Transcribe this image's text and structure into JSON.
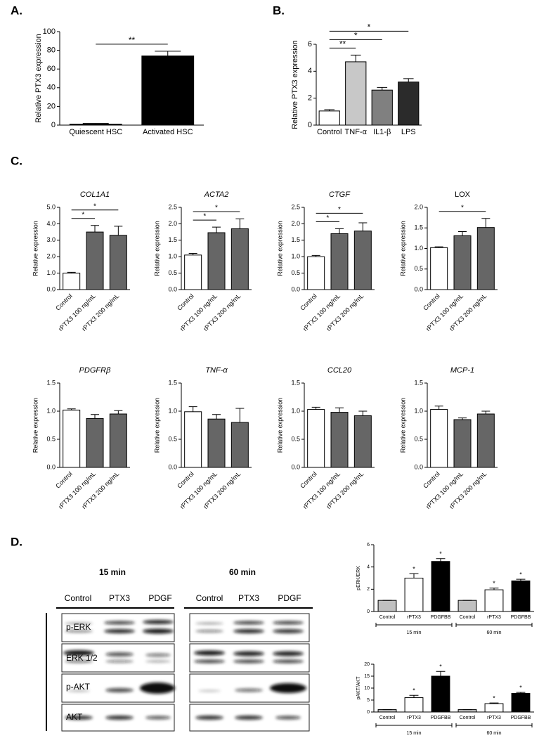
{
  "panels": [
    "A.",
    "B.",
    "C.",
    "D."
  ],
  "chart_data": [
    {
      "type": "bar",
      "ylabel": "Relative PTX3 expression",
      "categories": [
        "Quiescent HSC",
        "Activated HSC"
      ],
      "values": [
        1,
        74
      ],
      "error": [
        0.8,
        5
      ],
      "colors": [
        "#000000",
        "#000000"
      ],
      "ylim": [
        0,
        100
      ],
      "yticks": [
        0,
        20,
        40,
        60,
        80,
        100
      ],
      "annotations": [
        {
          "text": "**",
          "between": [
            "Quiescent HSC",
            "Activated HSC"
          ]
        }
      ]
    },
    {
      "type": "bar",
      "ylabel": "Relative PTX3 expression",
      "categories": [
        "Control",
        "TNF-α",
        "IL1-β",
        "LPS"
      ],
      "values": [
        1.05,
        4.7,
        2.6,
        3.2
      ],
      "error": [
        0.1,
        0.5,
        0.2,
        0.25
      ],
      "colors": [
        "#ffffff",
        "#c8c8c8",
        "#808080",
        "#2b2b2b"
      ],
      "ylim": [
        0,
        6
      ],
      "yticks": [
        0,
        2,
        4,
        6
      ],
      "annotations": [
        {
          "text": "**",
          "between": [
            "Control",
            "TNF-α"
          ]
        },
        {
          "text": "*",
          "between": [
            "Control",
            "IL1-β"
          ]
        },
        {
          "text": "*",
          "between": [
            "Control",
            "LPS"
          ]
        }
      ]
    },
    {
      "type": "bar",
      "title": "COL1A1",
      "italic": true,
      "ylabel": "Relative expression",
      "categories": [
        "Control",
        "rPTX3 100 ng/mL",
        "rPTX3 200 ng/mL"
      ],
      "values": [
        1.0,
        3.5,
        3.3
      ],
      "error": [
        0.05,
        0.4,
        0.55
      ],
      "colors": [
        "#ffffff",
        "#666666",
        "#666666"
      ],
      "ylim": [
        0,
        5
      ],
      "yticks": [
        {
          "value": 0,
          "label": "0.0"
        },
        {
          "value": 1,
          "label": "1.0"
        },
        {
          "value": 2,
          "label": "2.0"
        },
        {
          "value": 3,
          "label": "3.0"
        },
        {
          "value": 4,
          "label": "4.0"
        },
        {
          "value": 5,
          "label": "5.0"
        }
      ],
      "annotations": [
        {
          "text": "*",
          "between": [
            "Control",
            "rPTX3 100 ng/mL"
          ]
        },
        {
          "text": "*",
          "between": [
            "Control",
            "rPTX3 200 ng/mL"
          ]
        }
      ]
    },
    {
      "type": "bar",
      "title": "ACTA2",
      "italic": true,
      "ylabel": "Relative expression",
      "categories": [
        "Control",
        "rPTX3 100 ng/mL",
        "rPTX3 200 ng/mL"
      ],
      "values": [
        1.05,
        1.73,
        1.85
      ],
      "error": [
        0.05,
        0.17,
        0.3
      ],
      "colors": [
        "#ffffff",
        "#666666",
        "#666666"
      ],
      "ylim": [
        0,
        2.5
      ],
      "yticks": [
        {
          "value": 0,
          "label": "0.0"
        },
        {
          "value": 0.5,
          "label": "0.5"
        },
        {
          "value": 1,
          "label": "1.0"
        },
        {
          "value": 1.5,
          "label": "1.5"
        },
        {
          "value": 2,
          "label": "2.0"
        },
        {
          "value": 2.5,
          "label": "2.5"
        }
      ],
      "annotations": [
        {
          "text": "*",
          "between": [
            "Control",
            "rPTX3 100 ng/mL"
          ]
        },
        {
          "text": "*",
          "between": [
            "Control",
            "rPTX3 200 ng/mL"
          ]
        }
      ]
    },
    {
      "type": "bar",
      "title": "CTGF",
      "italic": true,
      "ylabel": "Relative expression",
      "categories": [
        "Control",
        "rPTX3 100 ng/mL",
        "rPTX3 200 ng/mL"
      ],
      "values": [
        1.0,
        1.7,
        1.78
      ],
      "error": [
        0.04,
        0.15,
        0.25
      ],
      "colors": [
        "#ffffff",
        "#666666",
        "#666666"
      ],
      "ylim": [
        0,
        2.5
      ],
      "yticks": [
        {
          "value": 0,
          "label": "0.0"
        },
        {
          "value": 0.5,
          "label": "0.5"
        },
        {
          "value": 1,
          "label": "1.0"
        },
        {
          "value": 1.5,
          "label": "1.5"
        },
        {
          "value": 2,
          "label": "2.0"
        },
        {
          "value": 2.5,
          "label": "2.5"
        }
      ],
      "annotations": [
        {
          "text": "*",
          "between": [
            "Control",
            "rPTX3 100 ng/mL"
          ]
        },
        {
          "text": "*",
          "between": [
            "Control",
            "rPTX3 200 ng/mL"
          ]
        }
      ]
    },
    {
      "type": "bar",
      "title": "LOX",
      "italic": false,
      "ylabel": "Relative expression",
      "categories": [
        "Control",
        "rPTX3 100 ng/mL",
        "rPTX3 200 ng/mL"
      ],
      "values": [
        1.02,
        1.31,
        1.51
      ],
      "error": [
        0.02,
        0.1,
        0.22
      ],
      "colors": [
        "#ffffff",
        "#666666",
        "#666666"
      ],
      "ylim": [
        0,
        2
      ],
      "yticks": [
        {
          "value": 0,
          "label": "0.0"
        },
        {
          "value": 0.5,
          "label": "0.5"
        },
        {
          "value": 1,
          "label": "1.0"
        },
        {
          "value": 1.5,
          "label": "1.5"
        },
        {
          "value": 2,
          "label": "2.0"
        }
      ],
      "annotations": [
        {
          "text": "*",
          "between": [
            "Control",
            "rPTX3 200 ng/mL"
          ]
        }
      ]
    },
    {
      "type": "bar",
      "title": "PDGFRβ",
      "italic": true,
      "ylabel": "Relative expression",
      "categories": [
        "Control",
        "rPTX3 100 ng/mL",
        "rPTX3 200 ng/mL"
      ],
      "values": [
        1.02,
        0.87,
        0.95
      ],
      "error": [
        0.02,
        0.07,
        0.06
      ],
      "colors": [
        "#ffffff",
        "#666666",
        "#666666"
      ],
      "ylim": [
        0,
        1.5
      ],
      "yticks": [
        {
          "value": 0,
          "label": "0.0"
        },
        {
          "value": 0.5,
          "label": "0.5"
        },
        {
          "value": 1,
          "label": "1.0"
        },
        {
          "value": 1.5,
          "label": "1.5"
        }
      ]
    },
    {
      "type": "bar",
      "title": "TNF-α",
      "italic": true,
      "ylabel": "Relative expression",
      "categories": [
        "Control",
        "rPTX3 100 ng/mL",
        "rPTX3 200 ng/mL"
      ],
      "values": [
        0.99,
        0.86,
        0.8
      ],
      "error": [
        0.09,
        0.08,
        0.25
      ],
      "colors": [
        "#ffffff",
        "#666666",
        "#666666"
      ],
      "ylim": [
        0,
        1.5
      ],
      "yticks": [
        {
          "value": 0,
          "label": "0.0"
        },
        {
          "value": 0.5,
          "label": "0.5"
        },
        {
          "value": 1,
          "label": "1.0"
        },
        {
          "value": 1.5,
          "label": "1.5"
        }
      ]
    },
    {
      "type": "bar",
      "title": "CCL20",
      "italic": true,
      "ylabel": "Relative expression",
      "categories": [
        "Control",
        "rPTX3 100 ng/mL",
        "rPTX3 200 ng/mL"
      ],
      "values": [
        1.03,
        0.98,
        0.92
      ],
      "error": [
        0.04,
        0.08,
        0.08
      ],
      "colors": [
        "#ffffff",
        "#666666",
        "#666666"
      ],
      "ylim": [
        0,
        1.5
      ],
      "yticks": [
        {
          "value": 0,
          "label": "0.0"
        },
        {
          "value": 0.5,
          "label": "0.5"
        },
        {
          "value": 1,
          "label": "1.0"
        },
        {
          "value": 1.5,
          "label": "1.5"
        }
      ]
    },
    {
      "type": "bar",
      "title": "MCP-1",
      "italic": true,
      "ylabel": "Relative expression",
      "categories": [
        "Control",
        "rPTX3 100 ng/mL",
        "rPTX3 200 ng/mL"
      ],
      "values": [
        1.03,
        0.85,
        0.95
      ],
      "error": [
        0.06,
        0.03,
        0.05
      ],
      "colors": [
        "#ffffff",
        "#666666",
        "#666666"
      ],
      "ylim": [
        0,
        1.5
      ],
      "yticks": [
        {
          "value": 0,
          "label": "0.0"
        },
        {
          "value": 0.5,
          "label": "0.5"
        },
        {
          "value": 1,
          "label": "1.0"
        },
        {
          "value": 1.5,
          "label": "1.5"
        }
      ]
    },
    {
      "type": "bar",
      "ylabel": "pERK/ERK",
      "categories": [
        "Control",
        "rPTX3",
        "PDGFBB",
        "Control",
        "rPTX3",
        "PDGFBB"
      ],
      "groups": [
        "15 min",
        "60 min"
      ],
      "values": [
        1,
        3,
        4.5,
        1,
        1.95,
        2.75
      ],
      "error": [
        0,
        0.4,
        0.25,
        0,
        0.15,
        0.15
      ],
      "bar_labels": [
        null,
        "*",
        "*",
        null,
        "*",
        "*"
      ],
      "colors": [
        "#c0c0c0",
        "#ffffff",
        "#000000",
        "#c0c0c0",
        "#ffffff",
        "#000000"
      ],
      "ylim": [
        0,
        6
      ],
      "yticks": [
        0,
        2,
        4,
        6
      ]
    },
    {
      "type": "bar",
      "ylabel": "pAKT/AKT",
      "categories": [
        "Control",
        "rPTX3",
        "PDGFBB",
        "Control",
        "rPTX3",
        "PDGFBB"
      ],
      "groups": [
        "15 min",
        "60 min"
      ],
      "values": [
        1,
        6,
        15,
        1,
        3.5,
        7.8
      ],
      "error": [
        0,
        1,
        2,
        0,
        0.3,
        0.4
      ],
      "bar_labels": [
        null,
        "*",
        "*",
        null,
        "*",
        "*"
      ],
      "colors": [
        "#c0c0c0",
        "#ffffff",
        "#000000",
        "#c0c0c0",
        "#ffffff",
        "#000000"
      ],
      "ylim": [
        0,
        20
      ],
      "yticks": [
        0,
        5,
        10,
        15,
        20
      ]
    }
  ],
  "blot": {
    "time_points": [
      "15 min",
      "60 min"
    ],
    "lanes": [
      "Control",
      "PTX3",
      "PDGF"
    ],
    "rows": [
      "p-ERK",
      "ERK 1/2",
      "p-AKT",
      "AKT"
    ]
  }
}
